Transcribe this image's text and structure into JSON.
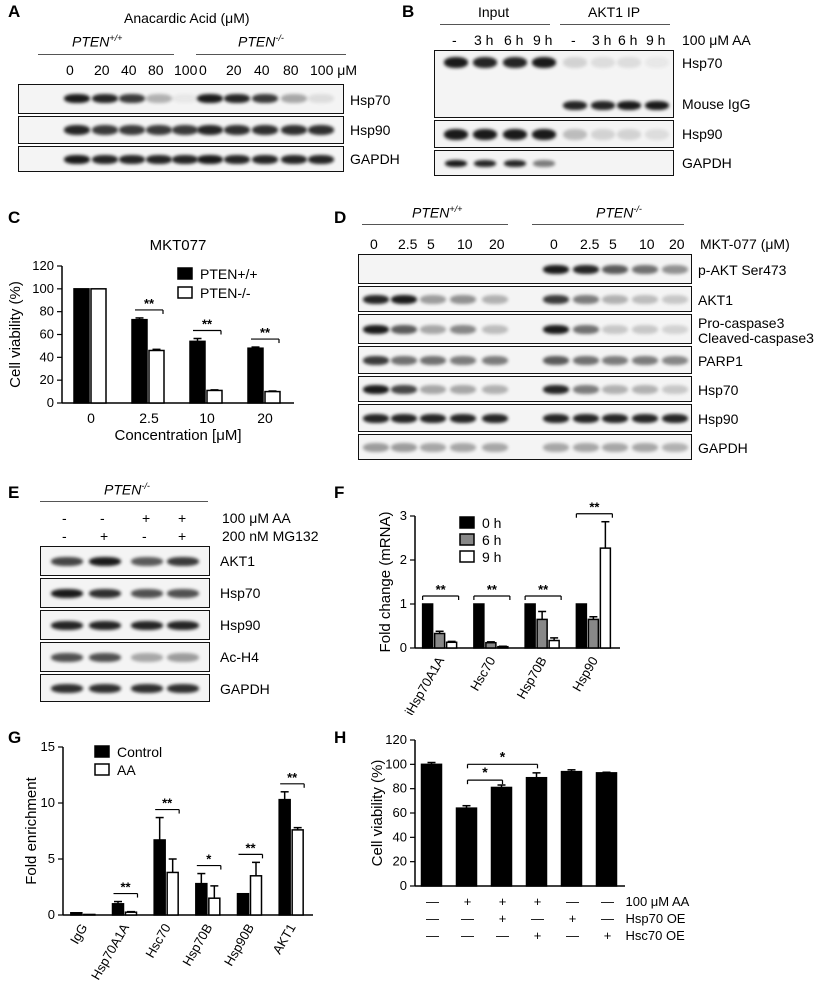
{
  "panels": {
    "A": {
      "label": "A",
      "title": "Anacardic Acid (μM)",
      "groups": [
        "PTEN+/+",
        "PTEN-/-"
      ],
      "conc_wt": [
        "0",
        "20",
        "40",
        "80",
        "100"
      ],
      "conc_ko": [
        "0",
        "20",
        "40",
        "80",
        "100 μM"
      ],
      "rows": [
        "Hsp70",
        "Hsp90",
        "GAPDH"
      ]
    },
    "B": {
      "label": "B",
      "groups": [
        "Input",
        "AKT1  IP"
      ],
      "lanes": [
        "-",
        "3 h",
        "6 h",
        "9 h",
        "-",
        "3 h",
        "6 h",
        "9 h"
      ],
      "treatment": "100 μM  AA",
      "rows": [
        "Hsp70",
        "Mouse IgG",
        "Hsp90",
        "GAPDH"
      ]
    },
    "C": {
      "label": "C"
    },
    "D": {
      "label": "D",
      "groups": [
        "PTEN+/+",
        "PTEN-/-"
      ],
      "lanes_wt": [
        "0",
        "2.5",
        "5",
        "10",
        "20"
      ],
      "lanes_ko": [
        "0",
        "2.5",
        "5",
        "10",
        "20"
      ],
      "treatment": "MKT-077 (μM)",
      "rows": [
        "p-AKT Ser473",
        "AKT1",
        "Pro-caspase3",
        "Cleaved-caspase3",
        "PARP1",
        "Hsp70",
        "Hsp90",
        "GAPDH"
      ]
    },
    "E": {
      "label": "E",
      "group": "PTEN-/-",
      "aa_signs": [
        "-",
        "-",
        "+",
        "+"
      ],
      "mg_signs": [
        "-",
        "+",
        "-",
        "+"
      ],
      "cond_aa": "100 μM AA",
      "cond_mg": "200 nM MG132",
      "rows": [
        "AKT1",
        "Hsp70",
        "Hsp90",
        "Ac-H4",
        "GAPDH"
      ]
    },
    "F": {
      "label": "F"
    },
    "G": {
      "label": "G"
    },
    "H": {
      "label": "H",
      "row_labels": [
        "100 μM AA",
        "Hsp70 OE",
        "Hsc70 OE"
      ],
      "signs": [
        [
          "—",
          "+",
          "+",
          "+",
          "—",
          "—"
        ],
        [
          "—",
          "—",
          "+",
          "—",
          "+",
          "—"
        ],
        [
          "—",
          "—",
          "—",
          "+",
          "—",
          "+"
        ]
      ]
    }
  },
  "chart_data": [
    {
      "id": "C",
      "type": "bar",
      "title": "MKT077",
      "xlabel": "Concentration [μM]",
      "ylabel": "Cell viability (%)",
      "categories": [
        "0",
        "2.5",
        "10",
        "20"
      ],
      "ylim": [
        0,
        120
      ],
      "yticks": [
        "0",
        "20",
        "40",
        "60",
        "80",
        "100",
        "120"
      ],
      "series": [
        {
          "name": "PTEN+/+",
          "color": "#000000",
          "values": [
            100,
            73,
            54,
            48
          ],
          "errors": [
            0,
            1.5,
            2.5,
            1
          ]
        },
        {
          "name": "PTEN-/-",
          "color": "#ffffff",
          "values": [
            100,
            46,
            11,
            10
          ],
          "errors": [
            0,
            1,
            0.5,
            0.5
          ]
        }
      ],
      "significance": [
        "**",
        "**",
        "**"
      ]
    },
    {
      "id": "F",
      "type": "bar",
      "ylabel": "Fold change (mRNA)",
      "categories": [
        "iHsp70A1A",
        "Hsc70",
        "Hsp70B",
        "Hsp90"
      ],
      "ylim": [
        0,
        3
      ],
      "yticks": [
        "0",
        "1",
        "2",
        "3"
      ],
      "series": [
        {
          "name": "0 h",
          "color": "#000000",
          "values": [
            1,
            1,
            1,
            1
          ],
          "errors": [
            0,
            0,
            0,
            0
          ]
        },
        {
          "name": "6 h",
          "color": "#888888",
          "values": [
            0.33,
            0.12,
            0.65,
            0.65
          ],
          "errors": [
            0.05,
            0.02,
            0.18,
            0.06
          ]
        },
        {
          "name": "9 h",
          "color": "#ffffff",
          "values": [
            0.13,
            0.03,
            0.17,
            2.27
          ],
          "errors": [
            0.02,
            0.01,
            0.06,
            0.6
          ]
        }
      ],
      "significance": [
        "**",
        "**",
        "**",
        "**"
      ]
    },
    {
      "id": "G",
      "type": "bar",
      "ylabel": "Fold enrichment",
      "categories": [
        "IgG",
        "Hsp70A1A",
        "Hsc70",
        "Hsp70B",
        "Hsp90B",
        "AKT1"
      ],
      "ylim": [
        0,
        15
      ],
      "yticks": [
        "0",
        "5",
        "10",
        "15"
      ],
      "series": [
        {
          "name": "Control",
          "color": "#000000",
          "values": [
            0.2,
            1.0,
            6.7,
            2.8,
            1.9,
            10.3
          ],
          "errors": [
            0,
            0.2,
            2.0,
            0.9,
            0,
            0.7
          ]
        },
        {
          "name": "AA",
          "color": "#ffffff",
          "values": [
            0.05,
            0.25,
            3.8,
            1.5,
            3.5,
            7.6
          ],
          "errors": [
            0,
            0.05,
            1.2,
            1.1,
            1.2,
            0.2
          ]
        }
      ],
      "significance": [
        "",
        "**",
        "**",
        "*",
        "**",
        "**"
      ]
    },
    {
      "id": "H",
      "type": "bar",
      "ylabel": "Cell viability (%)",
      "categories": [
        "1",
        "2",
        "3",
        "4",
        "5",
        "6"
      ],
      "ylim": [
        0,
        120
      ],
      "yticks": [
        "0",
        "20",
        "40",
        "60",
        "80",
        "100",
        "120"
      ],
      "series": [
        {
          "name": "",
          "color": "#000000",
          "values": [
            100,
            64,
            81,
            89,
            94,
            93
          ],
          "errors": [
            1.5,
            2,
            2,
            4,
            1.5,
            0.5
          ]
        }
      ],
      "significance": [
        "*",
        "*"
      ]
    }
  ]
}
